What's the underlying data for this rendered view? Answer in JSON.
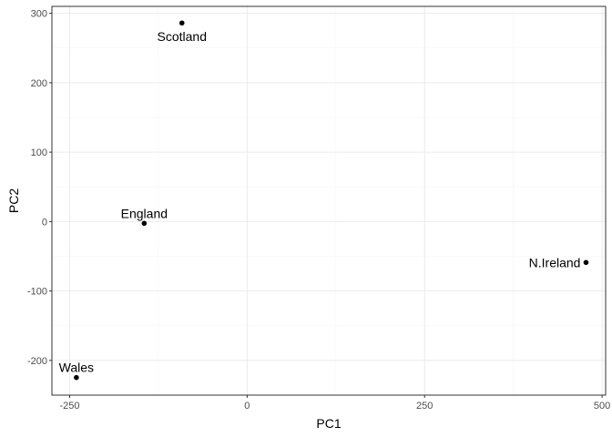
{
  "chart_data": {
    "type": "scatter",
    "title": "",
    "xlabel": "PC1",
    "ylabel": "PC2",
    "xlim": [
      -275,
      505
    ],
    "ylim": [
      -250,
      310
    ],
    "x_ticks": [
      -250,
      0,
      250,
      500
    ],
    "x_tick_labels": [
      "-250",
      "0",
      "250",
      "500"
    ],
    "y_ticks": [
      -200,
      -100,
      0,
      100,
      200,
      300
    ],
    "y_tick_labels": [
      "-200",
      "-100",
      "0",
      "100",
      "200",
      "300"
    ],
    "grid": true,
    "points": [
      {
        "label": "England",
        "x": -144.99,
        "y": -2.53,
        "label_position": "above"
      },
      {
        "label": "Wales",
        "x": -240.53,
        "y": -224.65,
        "label_position": "above"
      },
      {
        "label": "Scotland",
        "x": -91.87,
        "y": 286.08,
        "label_position": "below"
      },
      {
        "label": "N.Ireland",
        "x": 477.39,
        "y": -58.9,
        "label_position": "left"
      }
    ],
    "colors": {
      "background": "#ffffff",
      "panel_border": "#333333",
      "grid_major": "#ebebeb",
      "grid_minor": "#f5f5f5",
      "point": "#000000",
      "tick_text": "#4d4d4d"
    }
  }
}
